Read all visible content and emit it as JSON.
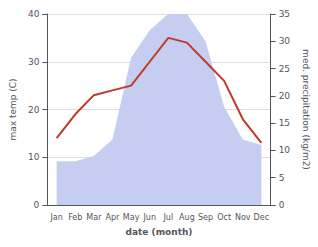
{
  "chart_data": {
    "type": "line",
    "categories": [
      "Jan",
      "Feb",
      "Mar",
      "Apr",
      "May",
      "Jun",
      "Jul",
      "Aug",
      "Sep",
      "Oct",
      "Nov",
      "Dec"
    ],
    "xlabel": "date (month)",
    "ylabel": "max temp (C)",
    "y2label": "med. precipitation (kg/m2)",
    "ylim": [
      0,
      40
    ],
    "yticks": [
      0,
      10,
      20,
      30,
      40
    ],
    "y2lim": [
      0,
      35
    ],
    "y2ticks": [
      0,
      5,
      10,
      15,
      20,
      25,
      30,
      35
    ],
    "grid": true,
    "series": [
      {
        "type": "area",
        "axis": "y2",
        "color": "#c5cef0",
        "values": [
          8,
          8,
          9,
          12,
          27,
          32,
          35,
          35,
          30,
          18,
          12,
          11
        ]
      },
      {
        "type": "line",
        "color": "#c0392b",
        "values": [
          14,
          19,
          23,
          24,
          25,
          30,
          35,
          34,
          30,
          26,
          18,
          13
        ]
      }
    ]
  }
}
